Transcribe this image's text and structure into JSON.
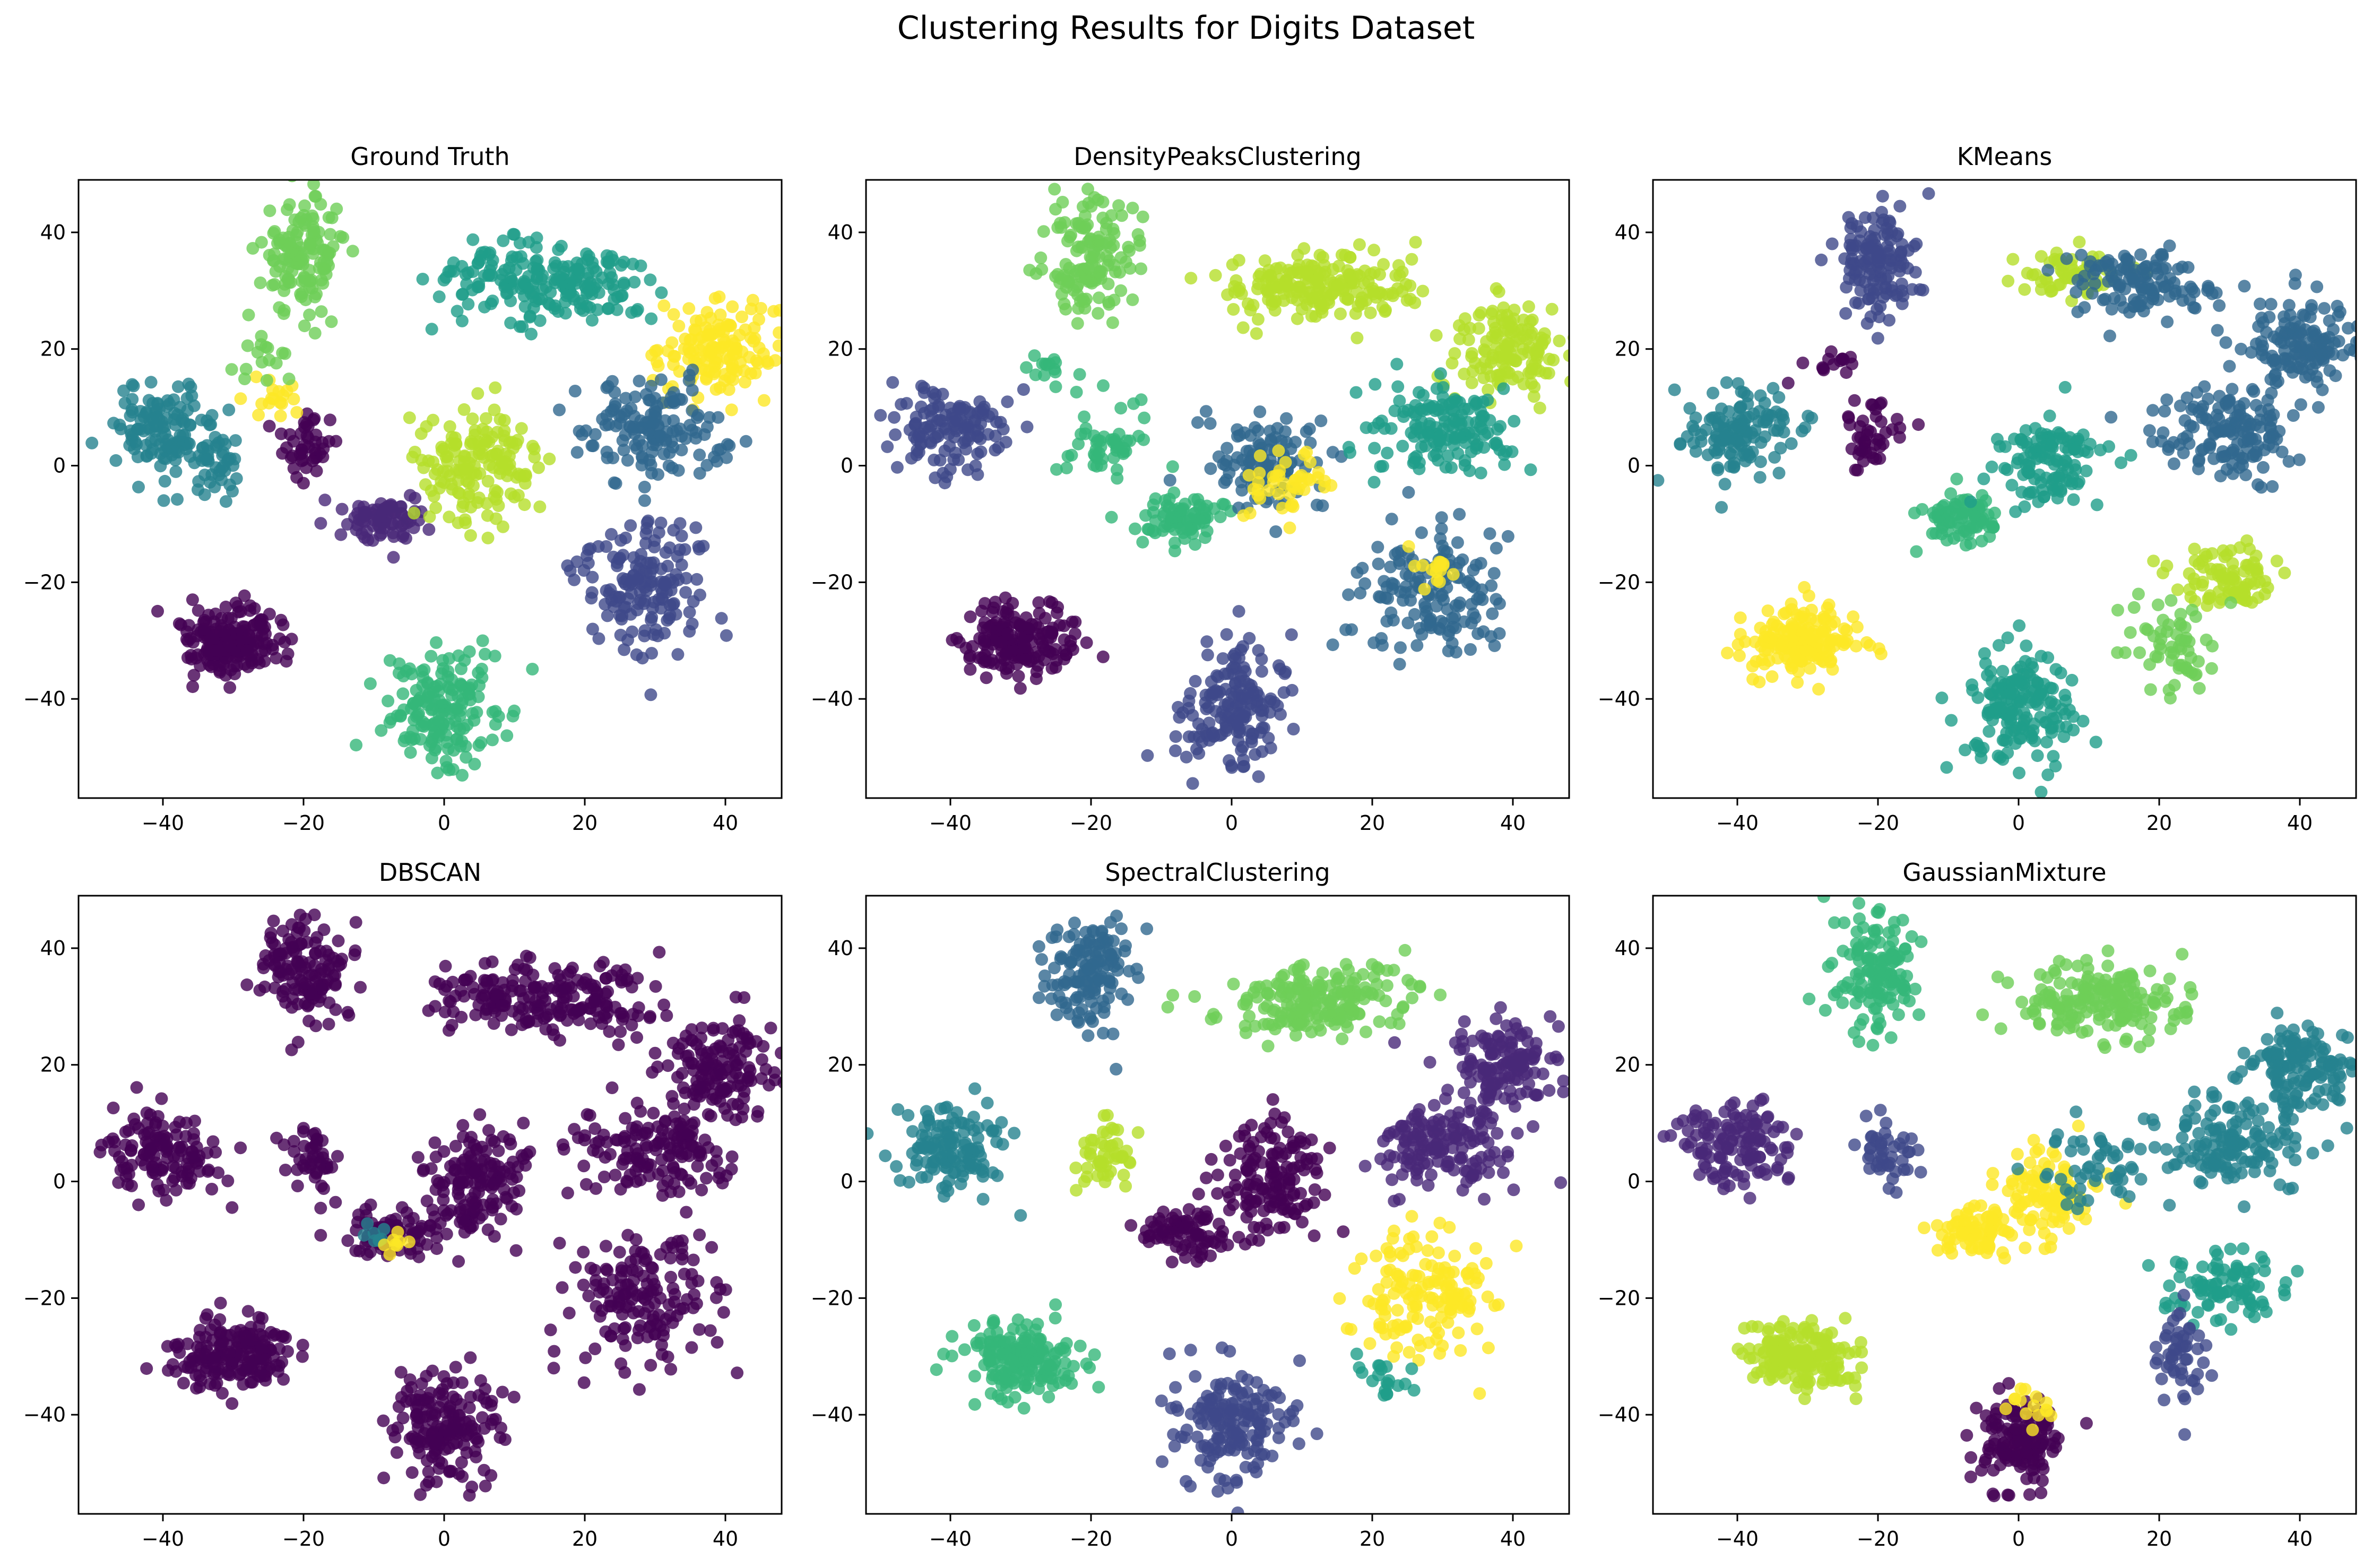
{
  "figure": {
    "title": "Clustering Results for Digits Dataset"
  },
  "chart_data": [
    {
      "type": "scatter",
      "title": "Ground Truth",
      "xlabel": "",
      "ylabel": "",
      "xlim": [
        -52,
        48
      ],
      "ylim": [
        -57,
        49
      ],
      "xticks": [
        -40,
        -20,
        0,
        20,
        40
      ],
      "yticks": [
        -40,
        -20,
        0,
        20,
        40
      ],
      "grid": false,
      "colors": [
        "#440154",
        "#482878",
        "#3e4989",
        "#31688e",
        "#26828e",
        "#1f9e89",
        "#35b779",
        "#6ece58",
        "#b5de2b",
        "#fde725"
      ],
      "clusters": [
        {
          "cx": -20,
          "cy": 36,
          "sx": 3,
          "sy": 5,
          "n": 140,
          "color": 7
        },
        {
          "cx": 8,
          "cy": 32,
          "sx": 5,
          "sy": 3,
          "n": 100,
          "color": 5
        },
        {
          "cx": 20,
          "cy": 31,
          "sx": 5,
          "sy": 3,
          "n": 110,
          "color": 5
        },
        {
          "cx": 39,
          "cy": 20,
          "sx": 4,
          "sy": 4,
          "n": 140,
          "color": 9
        },
        {
          "cx": -40,
          "cy": 6,
          "sx": 4,
          "sy": 4,
          "n": 130,
          "color": 4
        },
        {
          "cx": -33,
          "cy": 0,
          "sx": 2,
          "sy": 3,
          "n": 40,
          "color": 4
        },
        {
          "cx": -19,
          "cy": 4,
          "sx": 2,
          "sy": 3,
          "n": 45,
          "color": 0
        },
        {
          "cx": -8,
          "cy": -9,
          "sx": 3,
          "sy": 2,
          "n": 80,
          "color": 1
        },
        {
          "cx": 5,
          "cy": 0,
          "sx": 4,
          "sy": 5,
          "n": 160,
          "color": 8
        },
        {
          "cx": 30,
          "cy": 6,
          "sx": 5,
          "sy": 4,
          "n": 150,
          "color": 3
        },
        {
          "cx": 28,
          "cy": -20,
          "sx": 5,
          "sy": 6,
          "n": 160,
          "color": 2
        },
        {
          "cx": -30,
          "cy": -30,
          "sx": 4,
          "sy": 3,
          "n": 180,
          "color": 0
        },
        {
          "cx": 0,
          "cy": -42,
          "sx": 4,
          "sy": 5,
          "n": 170,
          "color": 6
        },
        {
          "cx": -24,
          "cy": 12,
          "sx": 2,
          "sy": 2,
          "n": 18,
          "color": 9
        },
        {
          "cx": -26,
          "cy": 18,
          "sx": 2,
          "sy": 2,
          "n": 15,
          "color": 7
        }
      ]
    },
    {
      "type": "scatter",
      "title": "DensityPeaksClustering",
      "xlabel": "",
      "ylabel": "",
      "xlim": [
        -52,
        48
      ],
      "ylim": [
        -57,
        49
      ],
      "xticks": [
        -40,
        -20,
        0,
        20,
        40
      ],
      "yticks": [
        -40,
        -20,
        0,
        20,
        40
      ],
      "grid": false,
      "colors": [
        "#440154",
        "#482878",
        "#3e4989",
        "#31688e",
        "#26828e",
        "#1f9e89",
        "#35b779",
        "#6ece58",
        "#b5de2b",
        "#fde725"
      ],
      "clusters": [
        {
          "cx": -20,
          "cy": 36,
          "sx": 3,
          "sy": 5,
          "n": 140,
          "color": 7
        },
        {
          "cx": 12,
          "cy": 31,
          "sx": 7,
          "sy": 3,
          "n": 200,
          "color": 8
        },
        {
          "cx": 40,
          "cy": 20,
          "sx": 4,
          "sy": 4,
          "n": 140,
          "color": 8
        },
        {
          "cx": -40,
          "cy": 6,
          "sx": 4,
          "sy": 4,
          "n": 130,
          "color": 2
        },
        {
          "cx": -18,
          "cy": 4,
          "sx": 3,
          "sy": 3,
          "n": 50,
          "color": 6
        },
        {
          "cx": -7,
          "cy": -9,
          "sx": 3,
          "sy": 2,
          "n": 80,
          "color": 6
        },
        {
          "cx": 5,
          "cy": 0,
          "sx": 4,
          "sy": 4,
          "n": 110,
          "color": 3
        },
        {
          "cx": 8,
          "cy": -3,
          "sx": 3,
          "sy": 3,
          "n": 45,
          "color": 9
        },
        {
          "cx": 30,
          "cy": 6,
          "sx": 5,
          "sy": 4,
          "n": 150,
          "color": 5
        },
        {
          "cx": 28,
          "cy": -22,
          "sx": 5,
          "sy": 6,
          "n": 150,
          "color": 3
        },
        {
          "cx": 28,
          "cy": -18,
          "sx": 2,
          "sy": 2,
          "n": 15,
          "color": 9
        },
        {
          "cx": -30,
          "cy": -30,
          "sx": 4,
          "sy": 3,
          "n": 180,
          "color": 0
        },
        {
          "cx": 0,
          "cy": -42,
          "sx": 4,
          "sy": 5,
          "n": 170,
          "color": 2
        },
        {
          "cx": -26,
          "cy": 17,
          "sx": 2,
          "sy": 2,
          "n": 15,
          "color": 6
        }
      ]
    },
    {
      "type": "scatter",
      "title": "KMeans",
      "xlabel": "",
      "ylabel": "",
      "xlim": [
        -52,
        48
      ],
      "ylim": [
        -57,
        49
      ],
      "xticks": [
        -40,
        -20,
        0,
        20,
        40
      ],
      "yticks": [
        -40,
        -20,
        0,
        20,
        40
      ],
      "grid": false,
      "colors": [
        "#440154",
        "#482878",
        "#3e4989",
        "#31688e",
        "#26828e",
        "#1f9e89",
        "#35b779",
        "#6ece58",
        "#b5de2b",
        "#fde725"
      ],
      "clusters": [
        {
          "cx": -20,
          "cy": 35,
          "sx": 3,
          "sy": 5,
          "n": 140,
          "color": 2
        },
        {
          "cx": 7,
          "cy": 33,
          "sx": 4,
          "sy": 2,
          "n": 60,
          "color": 8
        },
        {
          "cx": 18,
          "cy": 31,
          "sx": 5,
          "sy": 3,
          "n": 120,
          "color": 3
        },
        {
          "cx": 40,
          "cy": 20,
          "sx": 4,
          "sy": 4,
          "n": 140,
          "color": 3
        },
        {
          "cx": -40,
          "cy": 6,
          "sx": 4,
          "sy": 4,
          "n": 130,
          "color": 4
        },
        {
          "cx": -20,
          "cy": 5,
          "sx": 2,
          "sy": 3,
          "n": 45,
          "color": 0
        },
        {
          "cx": -26,
          "cy": 18,
          "sx": 2,
          "sy": 2,
          "n": 15,
          "color": 0
        },
        {
          "cx": -8,
          "cy": -9,
          "sx": 3,
          "sy": 2,
          "n": 80,
          "color": 6
        },
        {
          "cx": 4,
          "cy": 0,
          "sx": 4,
          "sy": 4,
          "n": 120,
          "color": 5
        },
        {
          "cx": 30,
          "cy": 6,
          "sx": 5,
          "sy": 4,
          "n": 150,
          "color": 3
        },
        {
          "cx": 30,
          "cy": -19,
          "sx": 4,
          "sy": 3,
          "n": 90,
          "color": 8
        },
        {
          "cx": 21,
          "cy": -30,
          "sx": 3,
          "sy": 4,
          "n": 60,
          "color": 7
        },
        {
          "cx": -31,
          "cy": -30,
          "sx": 4,
          "sy": 3,
          "n": 180,
          "color": 9
        },
        {
          "cx": 0,
          "cy": -42,
          "sx": 4,
          "sy": 5,
          "n": 170,
          "color": 5
        }
      ]
    },
    {
      "type": "scatter",
      "title": "DBSCAN",
      "xlabel": "",
      "ylabel": "",
      "xlim": [
        -52,
        48
      ],
      "ylim": [
        -57,
        49
      ],
      "xticks": [
        -40,
        -20,
        0,
        20,
        40
      ],
      "yticks": [
        -40,
        -20,
        0,
        20,
        40
      ],
      "grid": false,
      "colors": [
        "#440154",
        "#482878",
        "#3e4989",
        "#31688e",
        "#26828e",
        "#1f9e89",
        "#35b779",
        "#6ece58",
        "#b5de2b",
        "#fde725"
      ],
      "clusters": [
        {
          "cx": -20,
          "cy": 36,
          "sx": 3,
          "sy": 5,
          "n": 140,
          "color": 0
        },
        {
          "cx": 8,
          "cy": 32,
          "sx": 5,
          "sy": 3,
          "n": 100,
          "color": 0
        },
        {
          "cx": 20,
          "cy": 31,
          "sx": 5,
          "sy": 3,
          "n": 110,
          "color": 0
        },
        {
          "cx": 39,
          "cy": 20,
          "sx": 4,
          "sy": 4,
          "n": 140,
          "color": 0
        },
        {
          "cx": -40,
          "cy": 5,
          "sx": 4,
          "sy": 4,
          "n": 130,
          "color": 0
        },
        {
          "cx": -19,
          "cy": 4,
          "sx": 2,
          "sy": 3,
          "n": 45,
          "color": 0
        },
        {
          "cx": -8,
          "cy": -9,
          "sx": 3,
          "sy": 2,
          "n": 80,
          "color": 0
        },
        {
          "cx": -10,
          "cy": -9,
          "sx": 1,
          "sy": 1,
          "n": 8,
          "color": 4
        },
        {
          "cx": -7,
          "cy": -11,
          "sx": 1,
          "sy": 1,
          "n": 8,
          "color": 9
        },
        {
          "cx": 5,
          "cy": 0,
          "sx": 4,
          "sy": 5,
          "n": 160,
          "color": 0
        },
        {
          "cx": 30,
          "cy": 6,
          "sx": 5,
          "sy": 4,
          "n": 150,
          "color": 0
        },
        {
          "cx": 28,
          "cy": -20,
          "sx": 5,
          "sy": 6,
          "n": 160,
          "color": 0
        },
        {
          "cx": -30,
          "cy": -30,
          "sx": 4,
          "sy": 3,
          "n": 180,
          "color": 0
        },
        {
          "cx": 0,
          "cy": -42,
          "sx": 4,
          "sy": 5,
          "n": 170,
          "color": 0
        }
      ]
    },
    {
      "type": "scatter",
      "title": "SpectralClustering",
      "xlabel": "",
      "ylabel": "",
      "xlim": [
        -52,
        48
      ],
      "ylim": [
        -57,
        49
      ],
      "xticks": [
        -40,
        -20,
        0,
        20,
        40
      ],
      "yticks": [
        -40,
        -20,
        0,
        20,
        40
      ],
      "grid": false,
      "colors": [
        "#440154",
        "#482878",
        "#3e4989",
        "#31688e",
        "#26828e",
        "#1f9e89",
        "#35b779",
        "#6ece58",
        "#b5de2b",
        "#fde725"
      ],
      "clusters": [
        {
          "cx": -20,
          "cy": 36,
          "sx": 3,
          "sy": 5,
          "n": 140,
          "color": 3
        },
        {
          "cx": 12,
          "cy": 31,
          "sx": 6,
          "sy": 3,
          "n": 200,
          "color": 7
        },
        {
          "cx": 39,
          "cy": 20,
          "sx": 4,
          "sy": 4,
          "n": 140,
          "color": 1
        },
        {
          "cx": -40,
          "cy": 6,
          "sx": 4,
          "sy": 4,
          "n": 130,
          "color": 4
        },
        {
          "cx": -18,
          "cy": 5,
          "sx": 2,
          "sy": 3,
          "n": 50,
          "color": 8
        },
        {
          "cx": -7,
          "cy": -9,
          "sx": 3,
          "sy": 2,
          "n": 80,
          "color": 0
        },
        {
          "cx": 5,
          "cy": 0,
          "sx": 4,
          "sy": 5,
          "n": 150,
          "color": 0
        },
        {
          "cx": 30,
          "cy": 6,
          "sx": 5,
          "sy": 4,
          "n": 150,
          "color": 1
        },
        {
          "cx": 28,
          "cy": -20,
          "sx": 5,
          "sy": 5,
          "n": 150,
          "color": 9
        },
        {
          "cx": 22,
          "cy": -34,
          "sx": 2,
          "sy": 2,
          "n": 20,
          "color": 5
        },
        {
          "cx": -30,
          "cy": -30,
          "sx": 4,
          "sy": 3,
          "n": 180,
          "color": 6
        },
        {
          "cx": 0,
          "cy": -42,
          "sx": 4,
          "sy": 5,
          "n": 170,
          "color": 2
        }
      ]
    },
    {
      "type": "scatter",
      "title": "GaussianMixture",
      "xlabel": "",
      "ylabel": "",
      "xlim": [
        -52,
        48
      ],
      "ylim": [
        -57,
        49
      ],
      "xticks": [
        -40,
        -20,
        0,
        20,
        40
      ],
      "yticks": [
        -40,
        -20,
        0,
        20,
        40
      ],
      "grid": false,
      "colors": [
        "#440154",
        "#482878",
        "#3e4989",
        "#31688e",
        "#26828e",
        "#1f9e89",
        "#35b779",
        "#6ece58",
        "#b5de2b",
        "#fde725"
      ],
      "clusters": [
        {
          "cx": -20,
          "cy": 36,
          "sx": 3,
          "sy": 5,
          "n": 140,
          "color": 6
        },
        {
          "cx": 12,
          "cy": 31,
          "sx": 6,
          "sy": 3,
          "n": 190,
          "color": 7
        },
        {
          "cx": 40,
          "cy": 20,
          "sx": 4,
          "sy": 4,
          "n": 140,
          "color": 4
        },
        {
          "cx": -40,
          "cy": 6,
          "sx": 4,
          "sy": 4,
          "n": 130,
          "color": 1
        },
        {
          "cx": -19,
          "cy": 4,
          "sx": 2,
          "sy": 3,
          "n": 45,
          "color": 2
        },
        {
          "cx": -6,
          "cy": -9,
          "sx": 3,
          "sy": 2,
          "n": 80,
          "color": 9
        },
        {
          "cx": 4,
          "cy": -2,
          "sx": 3,
          "sy": 4,
          "n": 100,
          "color": 9
        },
        {
          "cx": 10,
          "cy": 3,
          "sx": 3,
          "sy": 4,
          "n": 50,
          "color": 4
        },
        {
          "cx": 30,
          "cy": 6,
          "sx": 5,
          "sy": 4,
          "n": 150,
          "color": 4
        },
        {
          "cx": 29,
          "cy": -18,
          "sx": 4,
          "sy": 3,
          "n": 90,
          "color": 5
        },
        {
          "cx": 23,
          "cy": -30,
          "sx": 2,
          "sy": 4,
          "n": 50,
          "color": 2
        },
        {
          "cx": -31,
          "cy": -30,
          "sx": 4,
          "sy": 3,
          "n": 180,
          "color": 8
        },
        {
          "cx": 0,
          "cy": -45,
          "sx": 3,
          "sy": 4,
          "n": 150,
          "color": 0
        },
        {
          "cx": 2,
          "cy": -38,
          "sx": 2,
          "sy": 2,
          "n": 15,
          "color": 9
        }
      ]
    }
  ]
}
